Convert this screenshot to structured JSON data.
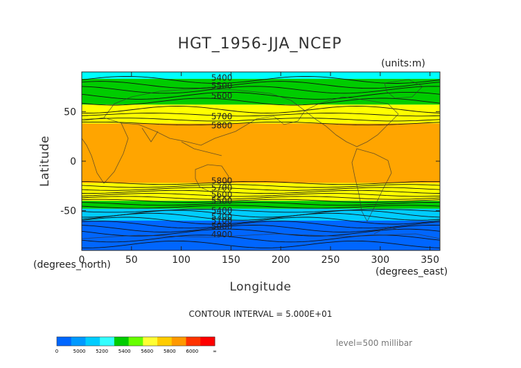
{
  "chart_data": {
    "type": "contour map",
    "title": "HGT_1956-JJA_NCEP",
    "units_label": "(units:m)",
    "xlabel": "Longitude",
    "ylabel": "Latitude",
    "x_unit_label": "(degrees_east)",
    "y_unit_label": "(degrees_north)",
    "xlim": [
      0,
      360
    ],
    "ylim": [
      -90,
      90
    ],
    "x_ticks": [
      0,
      50,
      100,
      150,
      200,
      250,
      300,
      350
    ],
    "y_ticks": [
      50,
      0,
      -50
    ],
    "contour_interval_text": "CONTOUR INTERVAL = 5.000E+01",
    "level_text": "level=500 millibar",
    "contour_labels": [
      {
        "text": "5400",
        "lon": 128,
        "lat": 84
      },
      {
        "text": "5500",
        "lon": 128,
        "lat": 76
      },
      {
        "text": "5600",
        "lon": 128,
        "lat": 66
      },
      {
        "text": "5700",
        "lon": 128,
        "lat": 45
      },
      {
        "text": "5800",
        "lon": 128,
        "lat": 36
      },
      {
        "text": "5800",
        "lon": 128,
        "lat": -20
      },
      {
        "text": "5700",
        "lon": 128,
        "lat": -27
      },
      {
        "text": "5600",
        "lon": 128,
        "lat": -34
      },
      {
        "text": "5500",
        "lon": 128,
        "lat": -40
      },
      {
        "text": "5400",
        "lon": 128,
        "lat": -50
      },
      {
        "text": "5300",
        "lon": 128,
        "lat": -56
      },
      {
        "text": "5100",
        "lon": 128,
        "lat": -60
      },
      {
        "text": "5000",
        "lon": 128,
        "lat": -66
      },
      {
        "text": "4900",
        "lon": 128,
        "lat": -74
      }
    ],
    "colorbar": {
      "labels": [
        "0",
        "5000",
        "5200",
        "5400",
        "5600",
        "5800",
        "6000",
        "∞"
      ],
      "colors": [
        "#0066ff",
        "#0099ff",
        "#00ccff",
        "#33ffff",
        "#00cc00",
        "#66ff00",
        "#ffff33",
        "#ffcc00",
        "#ff9900",
        "#ff3300",
        "#ff0000"
      ]
    },
    "fill_bands": [
      {
        "lat_top": 90,
        "lat_bottom": 83,
        "color": "#00ffff"
      },
      {
        "lat_top": 83,
        "lat_bottom": 57,
        "color": "#00cc00"
      },
      {
        "lat_top": 57,
        "lat_bottom": 38,
        "color": "#ffff00"
      },
      {
        "lat_top": 38,
        "lat_bottom": -22,
        "color": "#ffa500"
      },
      {
        "lat_top": -22,
        "lat_bottom": -40,
        "color": "#ffff00"
      },
      {
        "lat_top": -40,
        "lat_bottom": -48,
        "color": "#00cc00"
      },
      {
        "lat_top": -48,
        "lat_bottom": -60,
        "color": "#00ccff"
      },
      {
        "lat_top": -60,
        "lat_bottom": -90,
        "color": "#0066ff"
      }
    ],
    "contour_lines_lat": [
      82,
      77,
      72,
      66,
      60,
      52,
      47,
      42,
      38,
      -22,
      -25,
      -28,
      -31,
      -34,
      -37,
      -40,
      -43,
      -46,
      -50,
      -53,
      -56,
      -60,
      -64,
      -68,
      -72,
      -78,
      -84
    ]
  }
}
